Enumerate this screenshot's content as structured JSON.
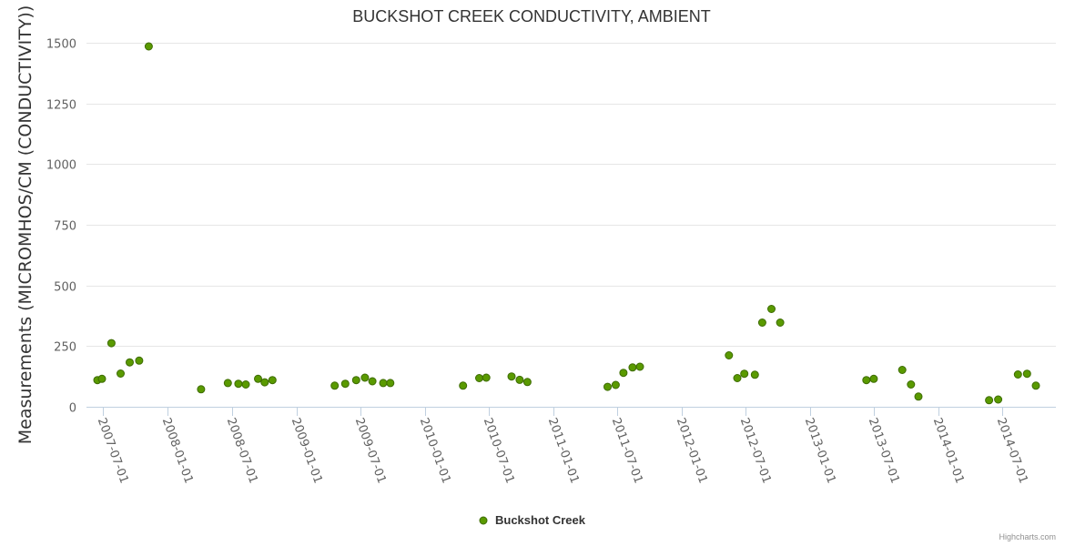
{
  "chart_data": {
    "type": "scatter",
    "title": "BUCKSHOT CREEK CONDUCTIVITY, AMBIENT",
    "ylabel": "Measurements (MICROMHOS/CM (CONDUCTIVITY))",
    "xlabel": "",
    "ylim": [
      0,
      1500
    ],
    "y_ticks": [
      0,
      250,
      500,
      750,
      1000,
      1250,
      1500
    ],
    "x_ticks": [
      "2007-07-01",
      "2008-01-01",
      "2008-07-01",
      "2009-01-01",
      "2009-07-01",
      "2010-01-01",
      "2010-07-01",
      "2011-01-01",
      "2011-07-01",
      "2012-01-01",
      "2012-07-01",
      "2013-01-01",
      "2013-07-01",
      "2014-01-01",
      "2014-07-01"
    ],
    "legend": "bottom-center",
    "grid": "horizontal",
    "series": [
      {
        "name": "Buckshot Creek",
        "color": "#5a9a00",
        "points": [
          {
            "x": "2007-06-15",
            "y": 110
          },
          {
            "x": "2007-06-28",
            "y": 115
          },
          {
            "x": "2007-07-25",
            "y": 262
          },
          {
            "x": "2007-08-20",
            "y": 137
          },
          {
            "x": "2007-09-15",
            "y": 183
          },
          {
            "x": "2007-10-12",
            "y": 190
          },
          {
            "x": "2007-11-08",
            "y": 1485
          },
          {
            "x": "2008-04-05",
            "y": 72
          },
          {
            "x": "2008-06-20",
            "y": 98
          },
          {
            "x": "2008-07-20",
            "y": 95
          },
          {
            "x": "2008-08-10",
            "y": 92
          },
          {
            "x": "2008-09-14",
            "y": 115
          },
          {
            "x": "2008-10-03",
            "y": 101
          },
          {
            "x": "2008-10-25",
            "y": 110
          },
          {
            "x": "2009-04-20",
            "y": 87
          },
          {
            "x": "2009-05-20",
            "y": 95
          },
          {
            "x": "2009-06-20",
            "y": 110
          },
          {
            "x": "2009-07-15",
            "y": 120
          },
          {
            "x": "2009-08-05",
            "y": 105
          },
          {
            "x": "2009-09-05",
            "y": 98
          },
          {
            "x": "2009-09-25",
            "y": 98
          },
          {
            "x": "2010-04-20",
            "y": 87
          },
          {
            "x": "2010-06-05",
            "y": 118
          },
          {
            "x": "2010-06-25",
            "y": 120
          },
          {
            "x": "2010-09-05",
            "y": 125
          },
          {
            "x": "2010-09-28",
            "y": 111
          },
          {
            "x": "2010-10-20",
            "y": 102
          },
          {
            "x": "2011-06-05",
            "y": 82
          },
          {
            "x": "2011-06-28",
            "y": 90
          },
          {
            "x": "2011-07-20",
            "y": 140
          },
          {
            "x": "2011-08-15",
            "y": 162
          },
          {
            "x": "2011-09-05",
            "y": 165
          },
          {
            "x": "2012-05-15",
            "y": 212
          },
          {
            "x": "2012-06-08",
            "y": 118
          },
          {
            "x": "2012-06-28",
            "y": 136
          },
          {
            "x": "2012-07-28",
            "y": 132
          },
          {
            "x": "2012-08-18",
            "y": 347
          },
          {
            "x": "2012-09-13",
            "y": 403
          },
          {
            "x": "2012-10-08",
            "y": 347
          },
          {
            "x": "2013-06-10",
            "y": 110
          },
          {
            "x": "2013-07-01",
            "y": 115
          },
          {
            "x": "2013-09-20",
            "y": 152
          },
          {
            "x": "2013-10-15",
            "y": 92
          },
          {
            "x": "2013-11-05",
            "y": 42
          },
          {
            "x": "2014-05-25",
            "y": 27
          },
          {
            "x": "2014-06-20",
            "y": 30
          },
          {
            "x": "2014-08-15",
            "y": 133
          },
          {
            "x": "2014-09-10",
            "y": 136
          },
          {
            "x": "2014-10-05",
            "y": 87
          }
        ]
      }
    ]
  },
  "credits": "Highcharts.com"
}
